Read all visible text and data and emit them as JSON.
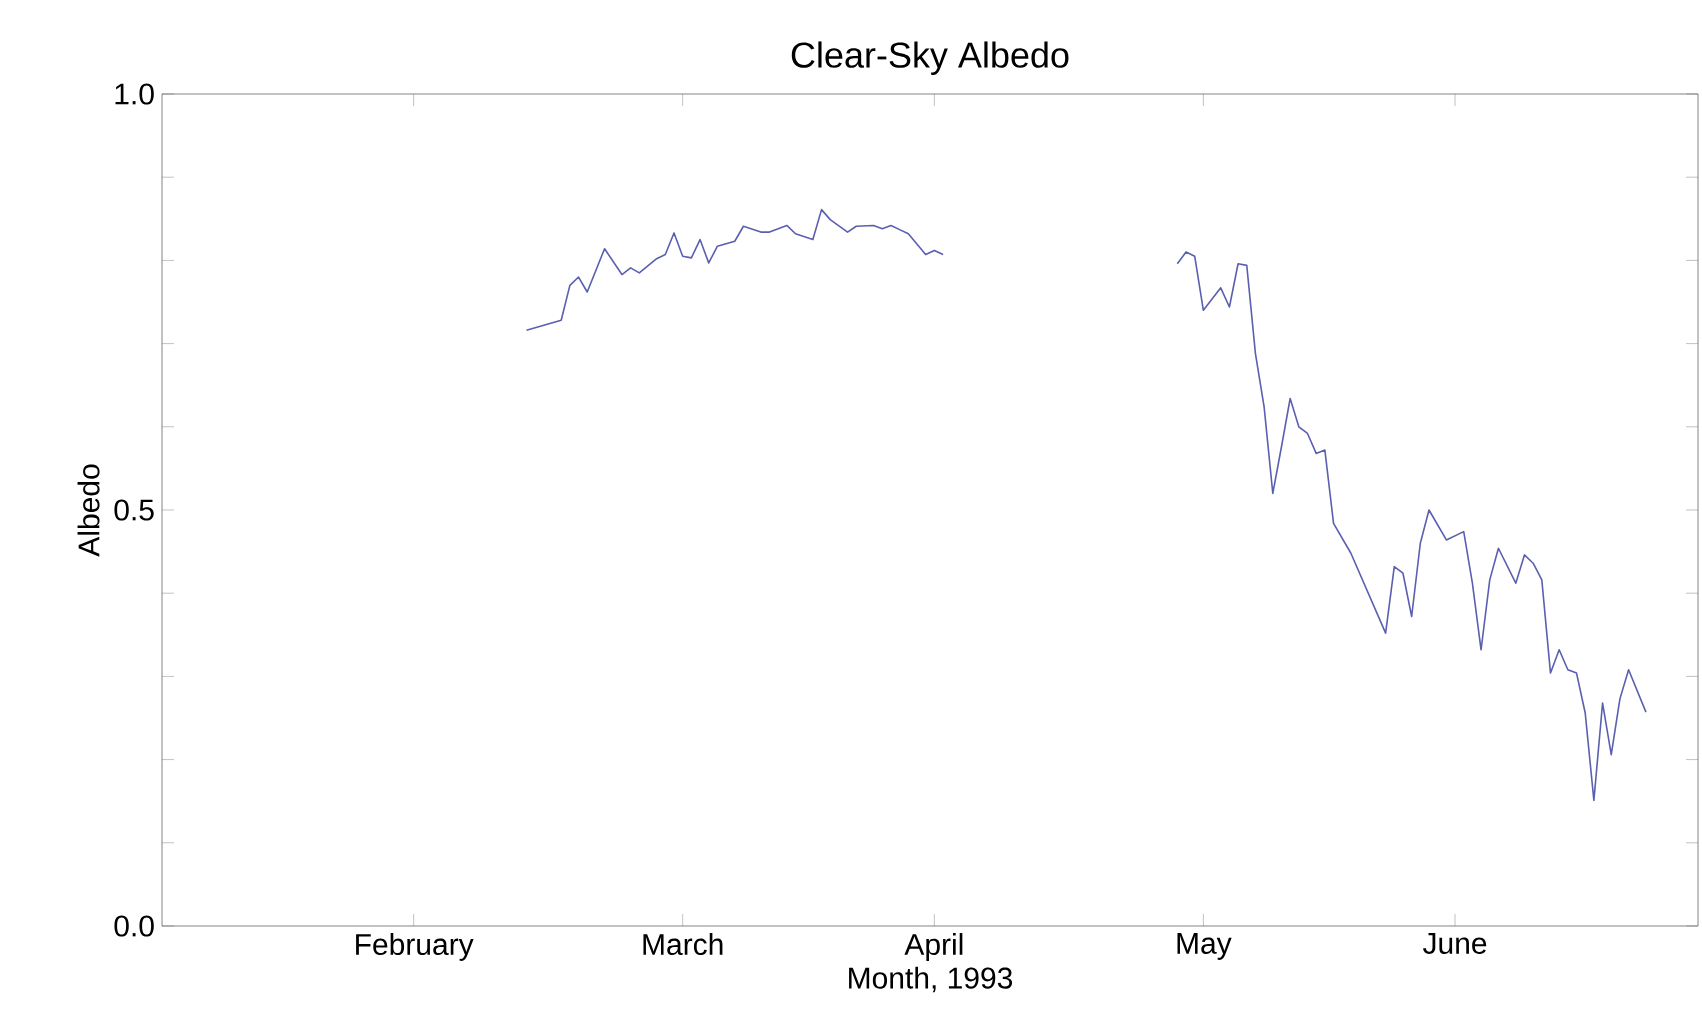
{
  "chart_data": {
    "type": "line",
    "title": "Clear-Sky Albedo",
    "xlabel": "Month, 1993",
    "ylabel": "Albedo",
    "xlim": [
      "1993-01-03",
      "1993-06-29"
    ],
    "xticks": [
      {
        "value": "1993-02-01",
        "label": "February"
      },
      {
        "value": "1993-03-04",
        "label": "March"
      },
      {
        "value": "1993-04-02",
        "label": "April"
      },
      {
        "value": "1993-05-03",
        "label": "May"
      },
      {
        "value": "1993-06-01",
        "label": "June"
      }
    ],
    "ylim": [
      0,
      1
    ],
    "yticks": [
      {
        "value": 0,
        "label": "0.0"
      },
      {
        "value": 0.1,
        "label": null
      },
      {
        "value": 0.2,
        "label": null
      },
      {
        "value": 0.3,
        "label": null
      },
      {
        "value": 0.4,
        "label": null
      },
      0.5,
      {
        "value": 0.6,
        "label": null
      },
      {
        "value": 0.7,
        "label": null
      },
      {
        "value": 0.8,
        "label": null
      },
      {
        "value": 0.9,
        "label": null
      },
      {
        "value": 1,
        "label": "1.0"
      }
    ],
    "series": [
      {
        "color": "#5a5fb0",
        "x": [
          "1993-02-14",
          "1993-02-16",
          "1993-02-18",
          "1993-02-19",
          "1993-02-20",
          "1993-02-21",
          "1993-02-23",
          "1993-02-25",
          "1993-02-26",
          "1993-02-27",
          "1993-03-01",
          "1993-03-02",
          "1993-03-03",
          "1993-03-04",
          "1993-03-05",
          "1993-03-06",
          "1993-03-07",
          "1993-03-08",
          "1993-03-10",
          "1993-03-11",
          "1993-03-13",
          "1993-03-14",
          "1993-03-16",
          "1993-03-17",
          "1993-03-19",
          "1993-03-20",
          "1993-03-21",
          "1993-03-23",
          "1993-03-24",
          "1993-03-26",
          "1993-03-27",
          "1993-03-28",
          "1993-03-29",
          "1993-03-30",
          "1993-04-01",
          "1993-04-02",
          "1993-04-03",
          "1993-04-16",
          "1993-04-30",
          "1993-05-01",
          "1993-05-02",
          "1993-05-03",
          "1993-05-05",
          "1993-05-06",
          "1993-05-07",
          "1993-05-08",
          "1993-05-09",
          "1993-05-10",
          "1993-05-11",
          "1993-05-12",
          "1993-05-13",
          "1993-05-14",
          "1993-05-15",
          "1993-05-16",
          "1993-05-17",
          "1993-05-18",
          "1993-05-20",
          "1993-05-24",
          "1993-05-25",
          "1993-05-26",
          "1993-05-27",
          "1993-05-28",
          "1993-05-29",
          "1993-05-31",
          "1993-06-02",
          "1993-06-03",
          "1993-06-04",
          "1993-06-05",
          "1993-06-06",
          "1993-06-08",
          "1993-06-09",
          "1993-06-10",
          "1993-06-11",
          "1993-06-12",
          "1993-06-13",
          "1993-06-14",
          "1993-06-15",
          "1993-06-16",
          "1993-06-17",
          "1993-06-18",
          "1993-06-19",
          "1993-06-20",
          "1993-06-21",
          "1993-06-23"
        ],
        "values": [
          0.716,
          0.722,
          0.728,
          0.77,
          0.78,
          0.762,
          0.814,
          0.783,
          0.791,
          0.785,
          0.802,
          0.807,
          0.833,
          0.805,
          0.803,
          0.825,
          0.797,
          0.817,
          0.823,
          0.841,
          0.834,
          0.834,
          0.842,
          0.832,
          0.825,
          0.861,
          0.849,
          0.834,
          0.841,
          0.842,
          0.838,
          0.842,
          0.837,
          0.832,
          0.807,
          0.812,
          0.807,
          null,
          0.796,
          0.81,
          0.805,
          0.74,
          0.767,
          0.744,
          0.796,
          0.794,
          0.688,
          0.624,
          0.52,
          0.576,
          0.634,
          0.6,
          0.592,
          0.568,
          0.572,
          0.484,
          0.448,
          0.352,
          0.432,
          0.424,
          0.372,
          0.46,
          0.5,
          0.464,
          0.474,
          0.412,
          0.332,
          0.416,
          0.454,
          0.412,
          0.446,
          0.436,
          0.416,
          0.304,
          0.332,
          0.308,
          0.304,
          0.256,
          0.151,
          0.268,
          0.206,
          0.273,
          0.308,
          0.257
        ]
      }
    ]
  }
}
